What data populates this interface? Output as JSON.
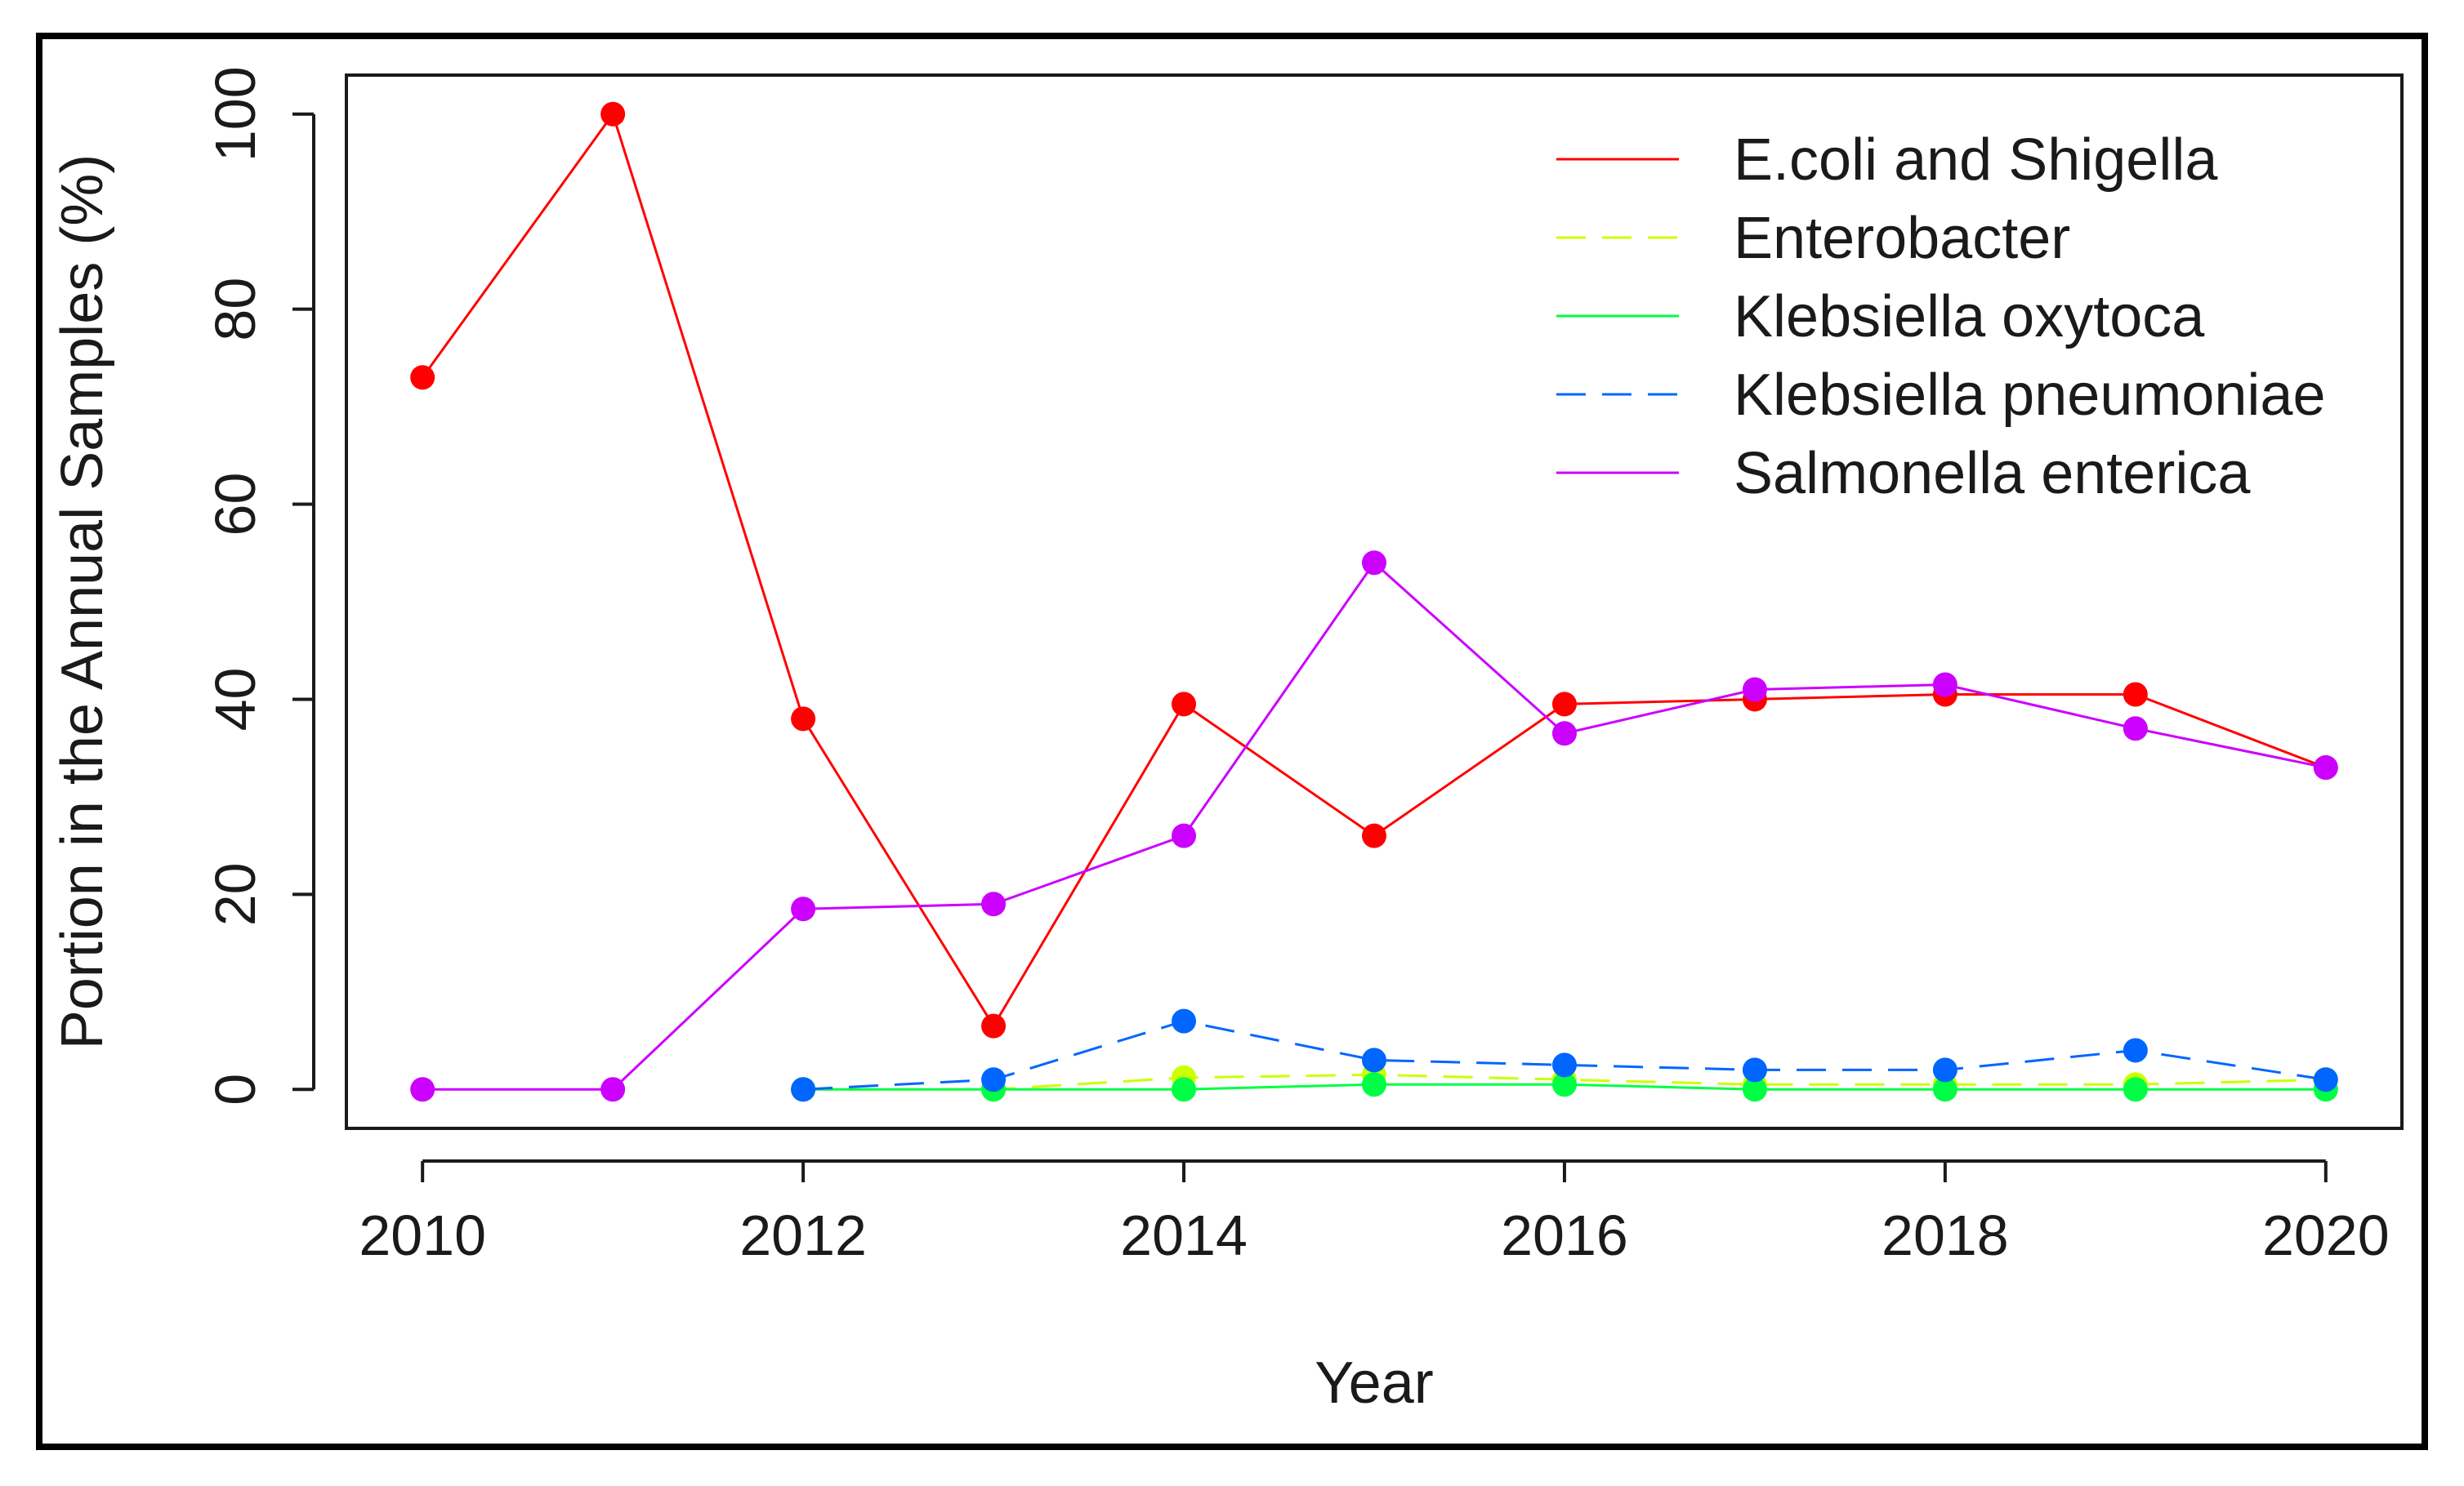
{
  "chart_data": {
    "type": "line",
    "title": "",
    "xlabel": "Year",
    "ylabel": "Portion in the Annual Samples (%)",
    "x": [
      2010,
      2011,
      2012,
      2013,
      2014,
      2015,
      2016,
      2017,
      2018,
      2019,
      2020
    ],
    "xticks": [
      "2010",
      "2012",
      "2014",
      "2016",
      "2018",
      "2020"
    ],
    "yticks": [
      "0",
      "20",
      "40",
      "60",
      "80",
      "100"
    ],
    "xlim": [
      2009.6,
      2020.4
    ],
    "ylim": [
      -4,
      104
    ],
    "grid": false,
    "legend_position": "top-right",
    "series": [
      {
        "name": "E.coli and Shigella",
        "color": "#ff0000",
        "dash": "solid",
        "values": [
          73,
          100,
          38,
          6.5,
          39.5,
          26,
          39.5,
          40,
          40.5,
          40.5,
          33
        ]
      },
      {
        "name": "Enterobacter",
        "color": "#ccff00",
        "dash": "dashed",
        "values": [
          null,
          null,
          0,
          0,
          1.2,
          1.5,
          1,
          0.5,
          0.5,
          0.5,
          1
        ]
      },
      {
        "name": "Klebsiella oxytoca",
        "color": "#00ff44",
        "dash": "solid",
        "values": [
          null,
          null,
          0,
          0,
          0,
          0.5,
          0.5,
          0,
          0,
          0,
          0
        ]
      },
      {
        "name": "Klebsiella pneumoniae",
        "color": "#0066ff",
        "dash": "dashed",
        "values": [
          null,
          null,
          0,
          1,
          7,
          3,
          2.5,
          2,
          2,
          4,
          1
        ]
      },
      {
        "name": "Salmonella enterica",
        "color": "#cc00ff",
        "dash": "solid",
        "values": [
          0,
          0,
          18.5,
          19,
          26,
          54,
          36.5,
          41,
          41.5,
          37,
          33
        ]
      }
    ]
  }
}
